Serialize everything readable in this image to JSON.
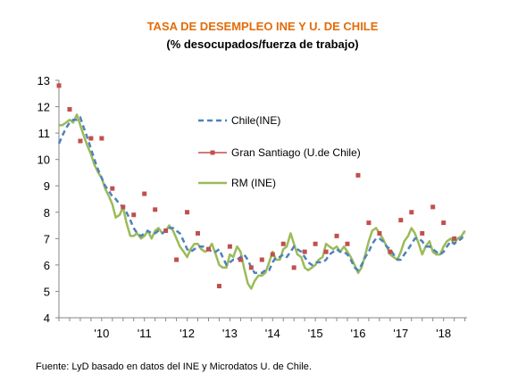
{
  "chart_data": {
    "type": "line",
    "title": "TASA DE DESEMPLEO INE Y U. DE CHILE",
    "subtitle": "(% desocupados/fuerza de trabajo)",
    "source": "Fuente: LyD basado en datos del INE y Microdatos U. de Chile.",
    "ylim": [
      4,
      13
    ],
    "yticks": [
      "4",
      "5",
      "6",
      "7",
      "8",
      "9",
      "10",
      "11",
      "12",
      "13"
    ],
    "xlim": [
      2009.0,
      2018.55
    ],
    "xticks": [
      {
        "x": 2010,
        "label": "'10"
      },
      {
        "x": 2011,
        "label": "'11"
      },
      {
        "x": 2012,
        "label": "'12"
      },
      {
        "x": 2013,
        "label": "'13"
      },
      {
        "x": 2014,
        "label": "'14"
      },
      {
        "x": 2015,
        "label": "'15"
      },
      {
        "x": 2016,
        "label": "'16"
      },
      {
        "x": 2017,
        "label": "'17"
      },
      {
        "x": 2018,
        "label": "'18"
      }
    ],
    "legend_position": "center",
    "series": [
      {
        "name": "Chile(INE)",
        "style": "dashed",
        "color": "#4f81bd",
        "points": [
          [
            2009.0,
            10.6
          ],
          [
            2009.08,
            10.9
          ],
          [
            2009.17,
            11.2
          ],
          [
            2009.25,
            11.4
          ],
          [
            2009.33,
            11.5
          ],
          [
            2009.42,
            11.5
          ],
          [
            2009.5,
            11.6
          ],
          [
            2009.58,
            11.2
          ],
          [
            2009.67,
            10.8
          ],
          [
            2009.75,
            10.4
          ],
          [
            2009.83,
            10.0
          ],
          [
            2009.92,
            9.6
          ],
          [
            2010.0,
            9.3
          ],
          [
            2010.08,
            9.0
          ],
          [
            2010.17,
            8.8
          ],
          [
            2010.25,
            8.6
          ],
          [
            2010.33,
            8.5
          ],
          [
            2010.42,
            8.3
          ],
          [
            2010.5,
            8.2
          ],
          [
            2010.58,
            8.0
          ],
          [
            2010.67,
            7.7
          ],
          [
            2010.75,
            7.4
          ],
          [
            2010.83,
            7.2
          ],
          [
            2010.92,
            7.1
          ],
          [
            2011.0,
            7.2
          ],
          [
            2011.08,
            7.3
          ],
          [
            2011.17,
            7.2
          ],
          [
            2011.25,
            7.2
          ],
          [
            2011.33,
            7.3
          ],
          [
            2011.42,
            7.2
          ],
          [
            2011.5,
            7.3
          ],
          [
            2011.58,
            7.4
          ],
          [
            2011.67,
            7.4
          ],
          [
            2011.75,
            7.3
          ],
          [
            2011.83,
            7.2
          ],
          [
            2011.92,
            6.9
          ],
          [
            2012.0,
            6.6
          ],
          [
            2012.08,
            6.5
          ],
          [
            2012.17,
            6.6
          ],
          [
            2012.25,
            6.7
          ],
          [
            2012.33,
            6.7
          ],
          [
            2012.42,
            6.7
          ],
          [
            2012.5,
            6.6
          ],
          [
            2012.58,
            6.5
          ],
          [
            2012.67,
            6.5
          ],
          [
            2012.75,
            6.6
          ],
          [
            2012.83,
            6.3
          ],
          [
            2012.92,
            6.0
          ],
          [
            2013.0,
            6.1
          ],
          [
            2013.08,
            6.2
          ],
          [
            2013.17,
            6.2
          ],
          [
            2013.25,
            6.3
          ],
          [
            2013.33,
            6.4
          ],
          [
            2013.42,
            6.2
          ],
          [
            2013.5,
            5.9
          ],
          [
            2013.58,
            5.7
          ],
          [
            2013.67,
            5.7
          ],
          [
            2013.75,
            5.7
          ],
          [
            2013.83,
            5.8
          ],
          [
            2013.92,
            5.8
          ],
          [
            2014.0,
            6.1
          ],
          [
            2014.08,
            6.3
          ],
          [
            2014.17,
            6.3
          ],
          [
            2014.25,
            6.4
          ],
          [
            2014.33,
            6.3
          ],
          [
            2014.42,
            6.5
          ],
          [
            2014.5,
            6.7
          ],
          [
            2014.58,
            6.6
          ],
          [
            2014.67,
            6.5
          ],
          [
            2014.75,
            6.3
          ],
          [
            2014.83,
            6.1
          ],
          [
            2014.92,
            6.0
          ],
          [
            2015.0,
            6.1
          ],
          [
            2015.08,
            6.1
          ],
          [
            2015.17,
            6.1
          ],
          [
            2015.25,
            6.2
          ],
          [
            2015.33,
            6.4
          ],
          [
            2015.42,
            6.5
          ],
          [
            2015.5,
            6.6
          ],
          [
            2015.58,
            6.5
          ],
          [
            2015.67,
            6.5
          ],
          [
            2015.75,
            6.4
          ],
          [
            2015.83,
            6.2
          ],
          [
            2015.92,
            5.9
          ],
          [
            2016.0,
            5.8
          ],
          [
            2016.08,
            6.0
          ],
          [
            2016.17,
            6.3
          ],
          [
            2016.25,
            6.5
          ],
          [
            2016.33,
            6.8
          ],
          [
            2016.42,
            7.0
          ],
          [
            2016.5,
            7.0
          ],
          [
            2016.58,
            6.9
          ],
          [
            2016.67,
            6.7
          ],
          [
            2016.75,
            6.6
          ],
          [
            2016.83,
            6.4
          ],
          [
            2016.92,
            6.2
          ],
          [
            2017.0,
            6.2
          ],
          [
            2017.08,
            6.4
          ],
          [
            2017.17,
            6.6
          ],
          [
            2017.25,
            6.8
          ],
          [
            2017.33,
            7.0
          ],
          [
            2017.42,
            7.0
          ],
          [
            2017.5,
            6.9
          ],
          [
            2017.58,
            6.7
          ],
          [
            2017.67,
            6.7
          ],
          [
            2017.75,
            6.6
          ],
          [
            2017.83,
            6.5
          ],
          [
            2017.92,
            6.4
          ],
          [
            2018.0,
            6.5
          ],
          [
            2018.08,
            6.7
          ],
          [
            2018.17,
            6.9
          ],
          [
            2018.25,
            6.8
          ],
          [
            2018.33,
            6.9
          ],
          [
            2018.42,
            7.0
          ],
          [
            2018.5,
            7.2
          ]
        ]
      },
      {
        "name": "Gran  Santiago (U.de Chile)",
        "style": "markers",
        "color": "#c0504d",
        "points": [
          [
            2009.0,
            12.8
          ],
          [
            2009.25,
            11.9
          ],
          [
            2009.5,
            10.7
          ],
          [
            2009.75,
            10.8
          ],
          [
            2010.0,
            10.8
          ],
          [
            2010.25,
            8.9
          ],
          [
            2010.5,
            8.2
          ],
          [
            2010.75,
            7.9
          ],
          [
            2011.0,
            8.7
          ],
          [
            2011.25,
            8.1
          ],
          [
            2011.5,
            7.3
          ],
          [
            2011.75,
            6.2
          ],
          [
            2012.0,
            8.0
          ],
          [
            2012.25,
            7.2
          ],
          [
            2012.5,
            6.6
          ],
          [
            2012.75,
            5.2
          ],
          [
            2013.0,
            6.7
          ],
          [
            2013.25,
            6.2
          ],
          [
            2013.5,
            5.9
          ],
          [
            2013.75,
            6.2
          ],
          [
            2014.0,
            6.4
          ],
          [
            2014.25,
            6.8
          ],
          [
            2014.5,
            5.9
          ],
          [
            2014.75,
            6.5
          ],
          [
            2015.0,
            6.8
          ],
          [
            2015.25,
            6.5
          ],
          [
            2015.5,
            7.1
          ],
          [
            2015.75,
            6.8
          ],
          [
            2016.0,
            9.4
          ],
          [
            2016.25,
            7.6
          ],
          [
            2016.5,
            7.2
          ],
          [
            2016.75,
            6.5
          ],
          [
            2017.0,
            7.7
          ],
          [
            2017.25,
            8.0
          ],
          [
            2017.5,
            7.2
          ],
          [
            2017.75,
            8.2
          ],
          [
            2018.0,
            7.6
          ],
          [
            2018.25,
            7.0
          ]
        ]
      },
      {
        "name": "RM (INE)",
        "style": "solid",
        "color": "#9bbb59",
        "points": [
          [
            2009.0,
            11.3
          ],
          [
            2009.08,
            11.3
          ],
          [
            2009.17,
            11.4
          ],
          [
            2009.25,
            11.5
          ],
          [
            2009.33,
            11.4
          ],
          [
            2009.42,
            11.7
          ],
          [
            2009.5,
            11.3
          ],
          [
            2009.58,
            10.9
          ],
          [
            2009.67,
            10.5
          ],
          [
            2009.75,
            10.2
          ],
          [
            2009.83,
            9.8
          ],
          [
            2009.92,
            9.5
          ],
          [
            2010.0,
            9.3
          ],
          [
            2010.08,
            8.9
          ],
          [
            2010.17,
            8.6
          ],
          [
            2010.25,
            8.3
          ],
          [
            2010.33,
            7.8
          ],
          [
            2010.42,
            7.9
          ],
          [
            2010.5,
            8.2
          ],
          [
            2010.58,
            7.6
          ],
          [
            2010.67,
            7.1
          ],
          [
            2010.75,
            7.1
          ],
          [
            2010.83,
            7.2
          ],
          [
            2010.92,
            7.0
          ],
          [
            2011.0,
            7.1
          ],
          [
            2011.08,
            7.3
          ],
          [
            2011.17,
            7.0
          ],
          [
            2011.25,
            7.3
          ],
          [
            2011.33,
            7.4
          ],
          [
            2011.42,
            7.2
          ],
          [
            2011.5,
            7.3
          ],
          [
            2011.58,
            7.5
          ],
          [
            2011.67,
            7.3
          ],
          [
            2011.75,
            7.0
          ],
          [
            2011.83,
            6.7
          ],
          [
            2011.92,
            6.5
          ],
          [
            2012.0,
            6.3
          ],
          [
            2012.08,
            6.6
          ],
          [
            2012.17,
            6.8
          ],
          [
            2012.25,
            6.8
          ],
          [
            2012.33,
            6.6
          ],
          [
            2012.42,
            6.5
          ],
          [
            2012.5,
            6.6
          ],
          [
            2012.58,
            6.8
          ],
          [
            2012.67,
            6.4
          ],
          [
            2012.75,
            6.0
          ],
          [
            2012.83,
            5.9
          ],
          [
            2012.92,
            5.9
          ],
          [
            2013.0,
            6.4
          ],
          [
            2013.08,
            6.3
          ],
          [
            2013.17,
            6.7
          ],
          [
            2013.25,
            6.5
          ],
          [
            2013.33,
            5.9
          ],
          [
            2013.42,
            5.3
          ],
          [
            2013.5,
            5.1
          ],
          [
            2013.58,
            5.4
          ],
          [
            2013.67,
            5.6
          ],
          [
            2013.75,
            5.6
          ],
          [
            2013.83,
            5.7
          ],
          [
            2013.92,
            6.1
          ],
          [
            2014.0,
            6.5
          ],
          [
            2014.08,
            6.2
          ],
          [
            2014.17,
            6.2
          ],
          [
            2014.25,
            6.6
          ],
          [
            2014.33,
            6.7
          ],
          [
            2014.42,
            7.2
          ],
          [
            2014.5,
            6.8
          ],
          [
            2014.58,
            6.4
          ],
          [
            2014.67,
            6.3
          ],
          [
            2014.75,
            5.9
          ],
          [
            2014.83,
            5.8
          ],
          [
            2014.92,
            5.9
          ],
          [
            2015.0,
            6.0
          ],
          [
            2015.08,
            6.2
          ],
          [
            2015.17,
            6.3
          ],
          [
            2015.25,
            6.8
          ],
          [
            2015.33,
            6.7
          ],
          [
            2015.42,
            6.6
          ],
          [
            2015.5,
            6.7
          ],
          [
            2015.58,
            6.5
          ],
          [
            2015.67,
            6.7
          ],
          [
            2015.75,
            6.5
          ],
          [
            2015.83,
            6.3
          ],
          [
            2015.92,
            6.0
          ],
          [
            2016.0,
            5.7
          ],
          [
            2016.08,
            5.9
          ],
          [
            2016.17,
            6.4
          ],
          [
            2016.25,
            6.9
          ],
          [
            2016.33,
            7.3
          ],
          [
            2016.42,
            7.4
          ],
          [
            2016.5,
            7.2
          ],
          [
            2016.58,
            7.0
          ],
          [
            2016.67,
            6.7
          ],
          [
            2016.75,
            6.4
          ],
          [
            2016.83,
            6.3
          ],
          [
            2016.92,
            6.2
          ],
          [
            2017.0,
            6.5
          ],
          [
            2017.08,
            6.9
          ],
          [
            2017.17,
            7.1
          ],
          [
            2017.25,
            7.4
          ],
          [
            2017.33,
            7.2
          ],
          [
            2017.42,
            6.8
          ],
          [
            2017.5,
            6.4
          ],
          [
            2017.58,
            6.7
          ],
          [
            2017.67,
            6.9
          ],
          [
            2017.75,
            6.5
          ],
          [
            2017.83,
            6.4
          ],
          [
            2017.92,
            6.4
          ],
          [
            2018.0,
            6.7
          ],
          [
            2018.08,
            6.9
          ],
          [
            2018.17,
            7.0
          ],
          [
            2018.25,
            6.8
          ],
          [
            2018.33,
            7.0
          ],
          [
            2018.42,
            7.1
          ],
          [
            2018.5,
            7.3
          ]
        ]
      }
    ]
  }
}
